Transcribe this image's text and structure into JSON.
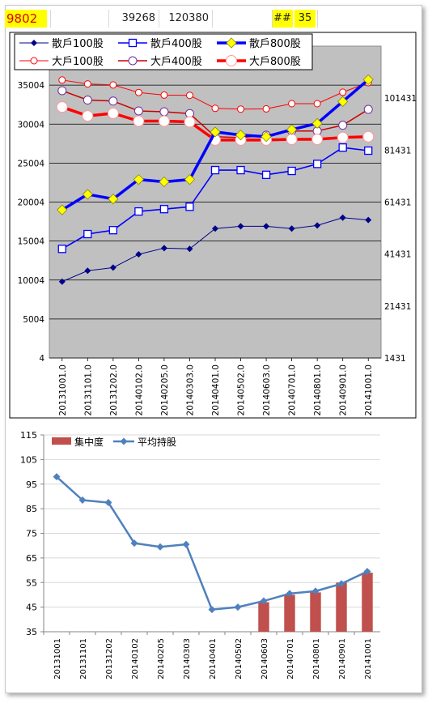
{
  "sheet": {
    "stock_code": "9802",
    "value_a": "39268",
    "value_b": "120380",
    "hash_cell": "##",
    "value_c": "35"
  },
  "chart_data": [
    {
      "type": "line",
      "categories": [
        "20131001.0",
        "20131101.0",
        "20131202.0",
        "20140102.0",
        "20140205.0",
        "20140303.0",
        "20140401.0",
        "20140502.0",
        "20140603.0",
        "20140701.0",
        "20140801.0",
        "20140901.0",
        "20141001.0"
      ],
      "left_axis_ticks": [
        "4",
        "5004",
        "10004",
        "15004",
        "20004",
        "25004",
        "30004",
        "35004"
      ],
      "right_axis_ticks": [
        "1431",
        "21431",
        "41431",
        "61431",
        "81431",
        "101431"
      ],
      "ylim_left": [
        4,
        40004
      ],
      "ylim_right": [
        1431,
        121431
      ],
      "legend_placement": "top",
      "grid": true,
      "plot_background": "#c0c0c0",
      "series": [
        {
          "name": "散戶100股",
          "axis": "left",
          "color": "#00008b",
          "marker": "diamond",
          "values": [
            9800,
            11200,
            11600,
            13300,
            14100,
            14000,
            16600,
            16900,
            16900,
            16600,
            17000,
            18000,
            17700
          ]
        },
        {
          "name": "散戶400股",
          "axis": "left",
          "color": "#0000ff",
          "marker": "square",
          "values": [
            14000,
            15900,
            16400,
            18800,
            19100,
            19400,
            24100,
            24100,
            23500,
            24000,
            24900,
            27000,
            26600
          ]
        },
        {
          "name": "散戶800股",
          "axis": "left",
          "color": "#0000ff",
          "marker": "diamond-yellow",
          "values": [
            19000,
            21000,
            20400,
            22900,
            22600,
            22900,
            29000,
            28600,
            28400,
            29300,
            30100,
            32900,
            35700
          ]
        },
        {
          "name": "大戶100股",
          "axis": "right",
          "color": "#ff0000",
          "marker": "circle-small",
          "values": [
            108400,
            106900,
            106500,
            103600,
            102600,
            102500,
            97500,
            97200,
            97300,
            99300,
            99300,
            103700,
            107400
          ]
        },
        {
          "name": "大戶400股",
          "axis": "right",
          "color": "#cc0000",
          "marker": "circle-medium",
          "values": [
            104300,
            100700,
            100300,
            96500,
            96200,
            95500,
            86600,
            86200,
            87200,
            88800,
            88800,
            91000,
            97100
          ]
        },
        {
          "name": "大戶800股",
          "axis": "right",
          "color": "#ff0000",
          "marker": "circle-large",
          "values": [
            98000,
            94600,
            95600,
            92600,
            92600,
            92300,
            85300,
            85300,
            85300,
            85600,
            85600,
            86300,
            86600
          ]
        }
      ]
    },
    {
      "type": "bar",
      "categories": [
        "20131001",
        "20131101",
        "20131202",
        "20140102",
        "20140205",
        "20140303",
        "20140401",
        "20140502",
        "20140603",
        "20140701",
        "20140801",
        "20140901",
        "20141001"
      ],
      "y_ticks": [
        "35",
        "45",
        "55",
        "65",
        "75",
        "85",
        "95",
        "105",
        "115"
      ],
      "ylim": [
        35,
        115
      ],
      "legend_placement": "top-left",
      "series": [
        {
          "name": "集中度",
          "kind": "bar",
          "color": "#c0504d",
          "values": [
            null,
            null,
            null,
            null,
            null,
            null,
            null,
            null,
            47,
            50,
            51,
            55,
            59
          ]
        },
        {
          "name": "平均持股",
          "kind": "line",
          "color": "#4f81bd",
          "values": [
            98,
            88.5,
            87.5,
            71,
            69.5,
            70.5,
            44,
            45,
            47.5,
            50.5,
            51.5,
            54.5,
            59.5
          ]
        }
      ]
    }
  ]
}
